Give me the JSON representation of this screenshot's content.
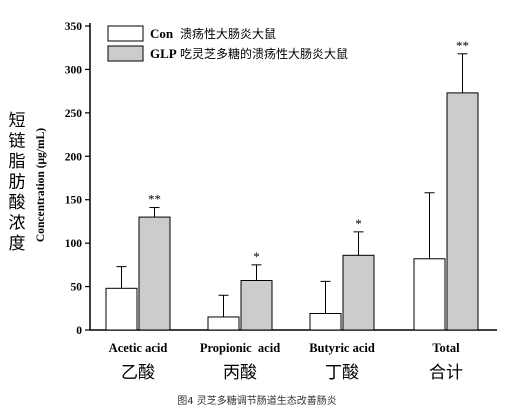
{
  "chart_data": {
    "type": "bar",
    "categories": [
      {
        "en": "Acetic acid",
        "zh": "乙酸"
      },
      {
        "en": "Propionic  acid",
        "zh": "丙酸"
      },
      {
        "en": "Butyric acid",
        "zh": "丁酸"
      },
      {
        "en": "Total",
        "zh": "合计"
      }
    ],
    "series": [
      {
        "name": "Con",
        "name_zh": "溃疡性大肠炎大鼠",
        "color": "#ffffff",
        "values": [
          48,
          15,
          19,
          82
        ],
        "errors": [
          25,
          25,
          37,
          76
        ],
        "significance": [
          "",
          "",
          "",
          ""
        ]
      },
      {
        "name": "GLP",
        "name_zh": "吃灵芝多糖的溃疡性大肠炎大鼠",
        "color": "#cccccc",
        "values": [
          130,
          57,
          86,
          273
        ],
        "errors": [
          11,
          18,
          27,
          45
        ],
        "significance": [
          "**",
          "*",
          "*",
          "**"
        ]
      }
    ],
    "ylabel": "Concentration (μg/mL)",
    "ylabel_zh": "短链脂肪酸浓度",
    "ylim": [
      0,
      350
    ],
    "yticks": [
      0,
      50,
      100,
      150,
      200,
      250,
      300,
      350
    ],
    "grid": false,
    "legend_position": "top-left"
  },
  "caption": "图4 灵芝多糖调节肠道生态改善肠炎"
}
